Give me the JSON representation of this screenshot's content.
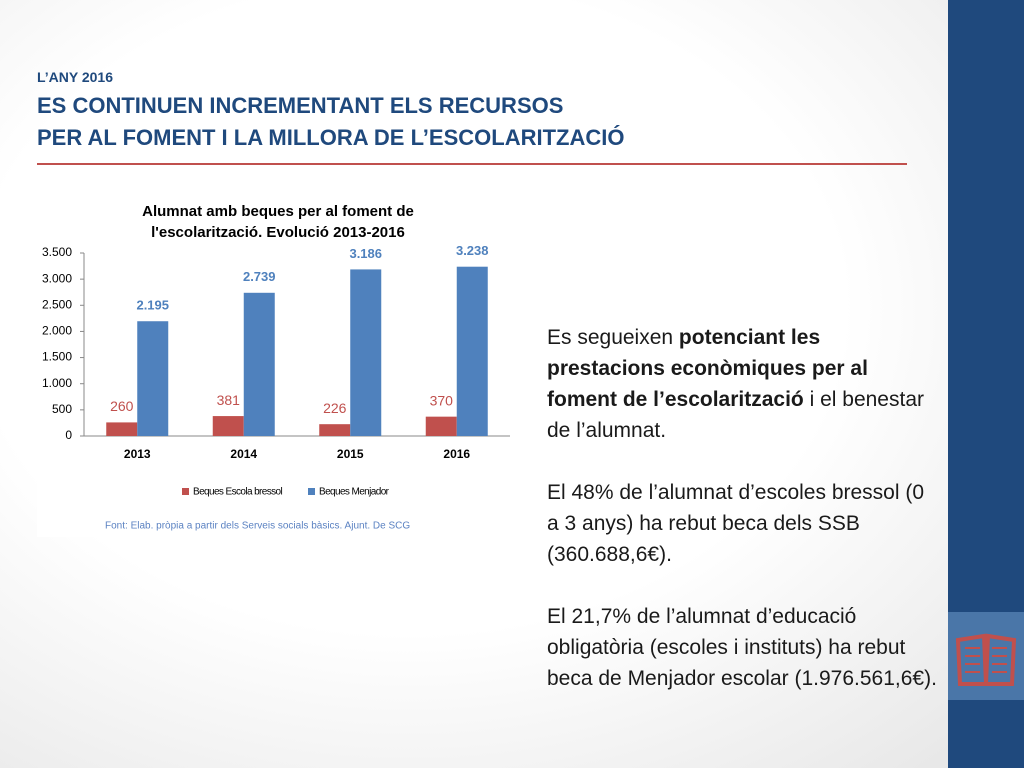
{
  "header": {
    "kicker": "L’ANY 2016",
    "title_lines": [
      "ES CONTINUEN INCREMENTANT ELS RECURSOS",
      "PER AL FOMENT I LA MILLORA DE L’ESCOLARITZACIÓ"
    ]
  },
  "chart_data": {
    "type": "bar",
    "title_lines": [
      "Alumnat amb beques per al foment de",
      "l'escolarització. Evolució 2013-2016"
    ],
    "categories": [
      "2013",
      "2014",
      "2015",
      "2016"
    ],
    "series": [
      {
        "name": "Beques Escola bressol",
        "color": "#c0504d",
        "values": [
          260,
          381,
          226,
          370
        ]
      },
      {
        "name": "Beques Menjador",
        "color": "#4f81bd",
        "values": [
          2195,
          2739,
          3186,
          3238
        ],
        "value_labels": [
          "2.195",
          "2.739",
          "3.186",
          "3.238"
        ]
      }
    ],
    "ylim": [
      0,
      3500
    ],
    "yticks": [
      0,
      500,
      {
        "value": 1000,
        "label": "1.000"
      },
      {
        "value": 1500,
        "label": "1.500"
      },
      {
        "value": 2000,
        "label": "2.000"
      },
      {
        "value": 2500,
        "label": "2.500"
      },
      {
        "value": 3000,
        "label": "3.000"
      },
      {
        "value": 3500,
        "label": "3.500"
      }
    ],
    "grid": false,
    "legend": "bottom",
    "source": "Font: Elab. pròpia a partir dels Serveis socials bàsics. Ajunt. De SCG"
  },
  "paragraphs": [
    {
      "parts": [
        {
          "text": "Es segueixen ",
          "bold": false
        },
        {
          "text": "potenciant les prestacions econòmiques per al foment de l’escolarització",
          "bold": true
        },
        {
          "text": " i el benestar de l’alumnat.",
          "bold": false
        }
      ]
    },
    {
      "parts": [
        {
          "text": "El 48% de l’alumnat d’escoles bressol (0 a 3 anys) ha rebut beca dels SSB (360.688,6€).",
          "bold": false
        }
      ]
    },
    {
      "parts": [
        {
          "text": "El 21,7% de l’alumnat d’educació obligatòria (escoles i instituts) ha rebut beca de Menjador escolar (1.976.561,6€).",
          "bold": false
        }
      ]
    }
  ]
}
